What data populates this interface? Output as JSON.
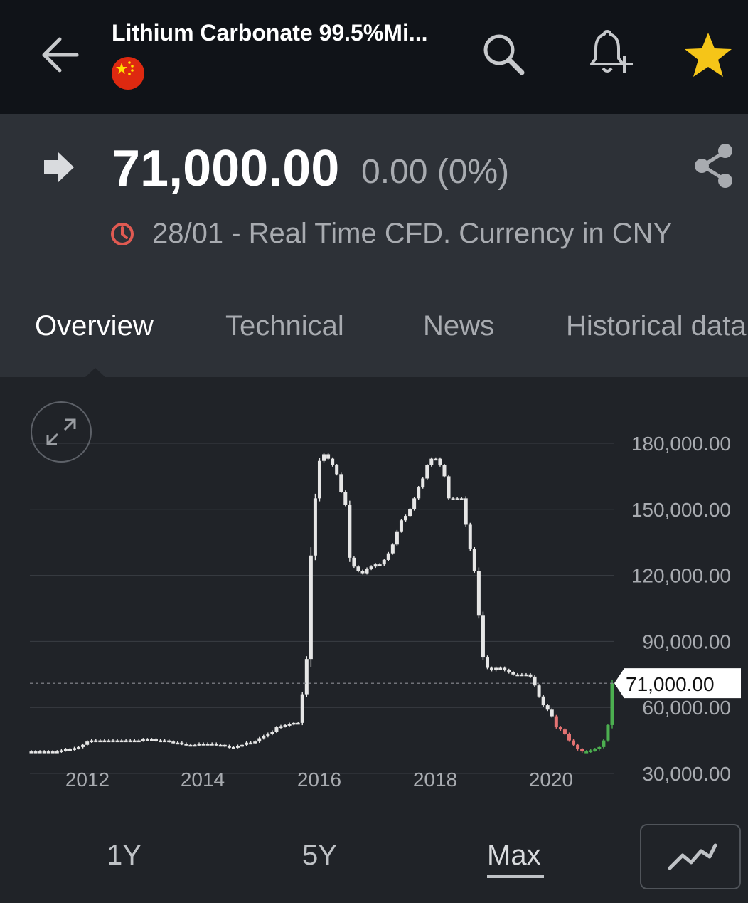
{
  "header": {
    "title": "Lithium Carbonate 99.5%Mi...",
    "back_icon": "arrow-left-icon",
    "flag_icon": "china-flag-icon",
    "search_icon": "search-icon",
    "alert_icon": "bell-plus-icon",
    "watchlist_icon": "star-icon",
    "star_color": "#f5c518"
  },
  "quote": {
    "price": "71,000.00",
    "change": "0.00 (0%)",
    "timestamp": "28/01 - Real Time CFD. Currency in CNY",
    "direction_icon": "right-arrow-icon",
    "clock_icon": "clock-icon",
    "clock_color": "#e05a52",
    "share_icon": "share-icon"
  },
  "tabs": [
    {
      "label": "Overview",
      "active": true
    },
    {
      "label": "Technical",
      "active": false
    },
    {
      "label": "News",
      "active": false
    },
    {
      "label": "Historical data",
      "active": false
    }
  ],
  "chart_data": {
    "type": "candlestick",
    "y_ticks": [
      "180,000.00",
      "150,000.00",
      "120,000.00",
      "90,000.00",
      "60,000.00",
      "30,000.00"
    ],
    "y_tick_values": [
      180000,
      150000,
      120000,
      90000,
      60000,
      30000
    ],
    "x_ticks": [
      "2012",
      "2014",
      "2016",
      "2018",
      "2020"
    ],
    "ylim": [
      30000,
      180000
    ],
    "current_label": "71,000.00",
    "current_value": 71000,
    "grid": true,
    "colors": {
      "neutral": "#e6e6e6",
      "down": "#e57373",
      "up": "#4caf50"
    },
    "series": [
      {
        "name": "neutral",
        "values": [
          40000,
          40000,
          40000,
          40000,
          40000,
          40000,
          40000,
          40500,
          41000,
          41000,
          41500,
          42000,
          43000,
          44500,
          45000,
          45000,
          45000,
          45000,
          45000,
          45000,
          45000,
          45000,
          45000,
          45000,
          45000,
          45000,
          45500,
          45500,
          45500,
          45000,
          45000,
          45000,
          44500,
          44000,
          44000,
          43500,
          43000,
          43000,
          43000,
          43500,
          43500,
          43500,
          43500,
          43000,
          43000,
          42500,
          42000,
          42000,
          42500,
          43000,
          44000,
          44000,
          44500,
          46000,
          47000,
          48000,
          49000,
          51000,
          51500,
          52000,
          52500,
          53000,
          53000,
          66000,
          82000,
          129000,
          155000,
          172000,
          175000,
          173000,
          170000,
          166000,
          158000,
          152000,
          128000,
          124000,
          122000,
          121000,
          123000,
          124000,
          125000,
          125000,
          127000,
          130000,
          134000,
          140000,
          145000,
          147000,
          150000,
          155000,
          160000,
          164000,
          170000,
          173000,
          173000,
          170000,
          165000,
          155000,
          155000,
          155000,
          155000,
          143000,
          132000,
          122000,
          102000,
          83000,
          78000,
          77000,
          78000,
          78000,
          77000,
          76000,
          75000,
          75000,
          75000,
          75000,
          74000,
          70000,
          65000,
          61000,
          59000,
          56000
        ]
      },
      {
        "name": "down",
        "values": [
          51000,
          50000,
          48000,
          45000,
          43000,
          41000,
          40000
        ]
      },
      {
        "name": "up",
        "values": [
          40000,
          40500,
          41000,
          42000,
          45000,
          52000,
          71000
        ]
      }
    ]
  },
  "ranges": [
    {
      "label": "1Y",
      "active": false
    },
    {
      "label": "5Y",
      "active": false
    },
    {
      "label": "Max",
      "active": true
    }
  ],
  "chart_type_icon": "line-chart-icon"
}
